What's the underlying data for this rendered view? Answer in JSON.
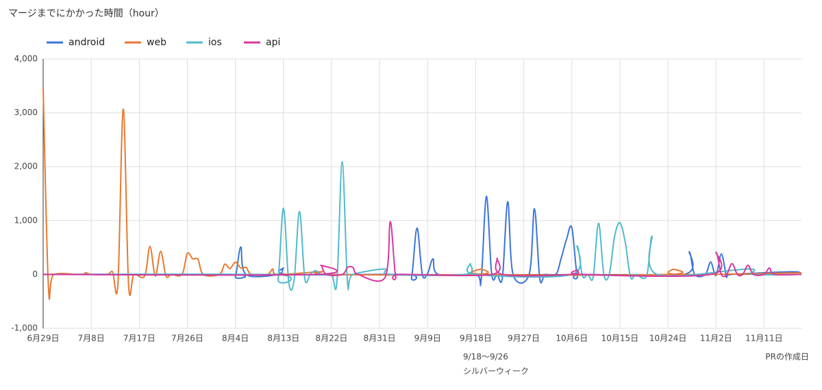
{
  "chart_data": {
    "type": "line",
    "title": "マージまでにかかった時間（hour）",
    "xlim": [
      "6月29日",
      "11月18日"
    ],
    "xticks": [
      "6月29日",
      "7月8日",
      "7月17日",
      "7月26日",
      "8月4日",
      "8月13日",
      "8月22日",
      "8月31日",
      "9月9日",
      "9月18日",
      "9月27日",
      "10月6日",
      "10月15日",
      "10月24日",
      "11月2日",
      "11月11日"
    ],
    "ylim": [
      -1000,
      4000
    ],
    "yticks": [
      {
        "value": -1000,
        "label": "-1,000"
      },
      0,
      {
        "value": 1000,
        "label": "1,000"
      },
      {
        "value": 2000,
        "label": "2,000"
      },
      {
        "value": 3000,
        "label": "3,000"
      },
      {
        "value": 4000,
        "label": "4,000"
      }
    ],
    "grid": true,
    "legend": "top-left",
    "annotations": [
      "9/18〜9/26",
      "シルバーウィーク",
      "PRの作成日"
    ],
    "series": [
      {
        "name": "android",
        "color": "#3a74d9",
        "x": [
          "6月29日",
          "8月3日",
          "8月4日",
          "8月5日",
          "8月6日",
          "8月12日",
          "8月13日",
          "8月14日",
          "9月5日",
          "9月6日",
          "9月7日",
          "9月8日",
          "9月9日",
          "9月10日",
          "9月11日",
          "9月18日",
          "9月19日",
          "9月20日",
          "9月21日",
          "9月22日",
          "9月23日",
          "9月24日",
          "9月25日",
          "9月28日",
          "9月29日",
          "9月30日",
          "10月1日",
          "10月3日",
          "10月4日",
          "10月5日",
          "10月6日",
          "10月7日",
          "10月8日",
          "10月27日",
          "10月28日",
          "10月29日",
          "10月31日",
          "11月1日",
          "11月2日",
          "11月3日",
          "11月4日",
          "11月5日",
          "11月16日",
          "11月18日"
        ],
        "values": [
          0,
          0,
          -40,
          510,
          0,
          0,
          120,
          0,
          0,
          -50,
          860,
          0,
          20,
          290,
          0,
          0,
          -120,
          1450,
          0,
          0,
          -60,
          1350,
          0,
          0,
          1220,
          -80,
          0,
          0,
          300,
          650,
          870,
          -20,
          0,
          0,
          420,
          0,
          0,
          230,
          -20,
          380,
          -30,
          0,
          50,
          20
        ]
      },
      {
        "name": "web",
        "color": "#e8772e",
        "x": [
          "6月29日",
          "6月30日",
          "7月1日",
          "7月6日",
          "7月7日",
          "7月8日",
          "7月11日",
          "7月12日",
          "7月13日",
          "7月14日",
          "7月15日",
          "7月16日",
          "7月18日",
          "7月19日",
          "7月20日",
          "7月21日",
          "7月22日",
          "7月23日",
          "7月25日",
          "7月26日",
          "7月27日",
          "7月28日",
          "7月29日",
          "8月1日",
          "8月2日",
          "8月3日",
          "8月4日",
          "8月5日",
          "8月6日",
          "8月7日",
          "8月10日",
          "8月11日",
          "8月12日",
          "8月20日",
          "8月21日",
          "9月18日",
          "9月19日",
          "9月20日",
          "10月24日",
          "10月25日",
          "10月26日",
          "11月18日"
        ],
        "values": [
          3450,
          -250,
          0,
          0,
          30,
          0,
          0,
          50,
          -180,
          3070,
          -200,
          0,
          -30,
          520,
          -30,
          430,
          -30,
          0,
          0,
          390,
          290,
          280,
          0,
          0,
          190,
          110,
          230,
          120,
          130,
          0,
          0,
          100,
          0,
          50,
          0,
          0,
          100,
          0,
          0,
          100,
          0,
          30
        ]
      },
      {
        "name": "ios",
        "color": "#4fb9cc",
        "x": [
          "6月29日",
          "8月11日",
          "8月12日",
          "8月13日",
          "8月14日",
          "8月15日",
          "8月16日",
          "8月17日",
          "8月18日",
          "8月19日",
          "8月20日",
          "8月22日",
          "8月23日",
          "8月24日",
          "8月25日",
          "8月26日",
          "9月1日",
          "9月2日",
          "9月16日",
          "9月17日",
          "9月18日",
          "10月6日",
          "10月7日",
          "10月8日",
          "10月9日",
          "10月10日",
          "10月11日",
          "10月12日",
          "10月13日",
          "10月14日",
          "10月15日",
          "10月16日",
          "10月17日",
          "10月18日",
          "10月20日",
          "10月21日",
          "10月22日",
          "11月8日",
          "11月9日",
          "11月18日"
        ],
        "values": [
          0,
          0,
          -80,
          1230,
          -150,
          -100,
          1170,
          -80,
          0,
          70,
          0,
          0,
          -150,
          2090,
          -150,
          0,
          100,
          0,
          0,
          200,
          0,
          0,
          530,
          -30,
          0,
          -50,
          950,
          0,
          0,
          700,
          960,
          600,
          -50,
          0,
          -30,
          710,
          0,
          100,
          0,
          0
        ]
      },
      {
        "name": "api",
        "color": "#d9369e",
        "x": [
          "6月29日",
          "8月19日",
          "8月20日",
          "8月21日",
          "8月24日",
          "8月25日",
          "8月26日",
          "8月27日",
          "9月1日",
          "9月2日",
          "9月3日",
          "9月4日",
          "9月21日",
          "9月22日",
          "9月23日",
          "10月6日",
          "10月7日",
          "10月8日",
          "11月1日",
          "11月2日",
          "11月3日",
          "11月4日",
          "11月5日",
          "11月6日",
          "11月7日",
          "11月8日",
          "11月9日",
          "11月11日",
          "11月12日",
          "11月13日",
          "11月18日"
        ],
        "values": [
          0,
          0,
          170,
          0,
          0,
          130,
          130,
          0,
          -60,
          980,
          -30,
          0,
          0,
          300,
          0,
          0,
          80,
          0,
          0,
          410,
          0,
          0,
          200,
          0,
          0,
          170,
          0,
          0,
          120,
          0,
          0
        ]
      }
    ]
  }
}
